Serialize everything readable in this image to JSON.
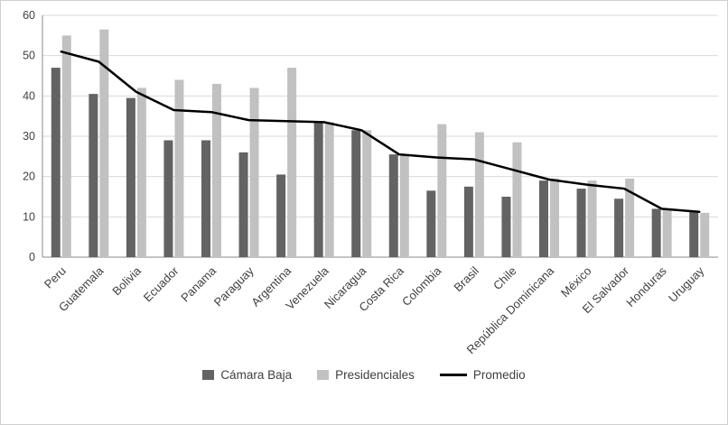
{
  "chart_data": {
    "type": "bar",
    "title": "",
    "xlabel": "",
    "ylabel": "",
    "ylim": [
      0,
      60
    ],
    "ytick_step": 10,
    "grid": true,
    "legend_position": "bottom",
    "categories": [
      "Peru",
      "Guatemala",
      "Bolivia",
      "Ecuador",
      "Panama",
      "Paraguay",
      "Argentina",
      "Venezuela",
      "Nicaragua",
      "Costa Rica",
      "Colombia",
      "Brasil",
      "Chile",
      "República Dominicana",
      "México",
      "El Salvador",
      "Honduras",
      "Uruguay"
    ],
    "series": [
      {
        "name": "Cámara Baja",
        "type": "bar",
        "color": "#636363",
        "values": [
          47,
          40.5,
          39.5,
          29,
          29,
          26,
          20.5,
          33.5,
          31.5,
          25.5,
          16.5,
          17.5,
          15,
          19,
          17,
          14.5,
          12,
          11.5
        ]
      },
      {
        "name": "Presidenciales",
        "type": "bar",
        "color": "#c1c1c1",
        "values": [
          55,
          56.5,
          42,
          44,
          43,
          42,
          47,
          33.5,
          31.5,
          25.5,
          33,
          31,
          28.5,
          19.5,
          19,
          19.5,
          12,
          11
        ]
      },
      {
        "name": "Promedio",
        "type": "line",
        "color": "#000000",
        "values": [
          51,
          48.5,
          41,
          36.5,
          36,
          34,
          33.75,
          33.5,
          31.5,
          25.5,
          24.75,
          24.25,
          21.75,
          19.25,
          18,
          17,
          12,
          11.25
        ]
      }
    ],
    "axis_color": "#898989",
    "gridline_color": "#d9d9d9"
  }
}
